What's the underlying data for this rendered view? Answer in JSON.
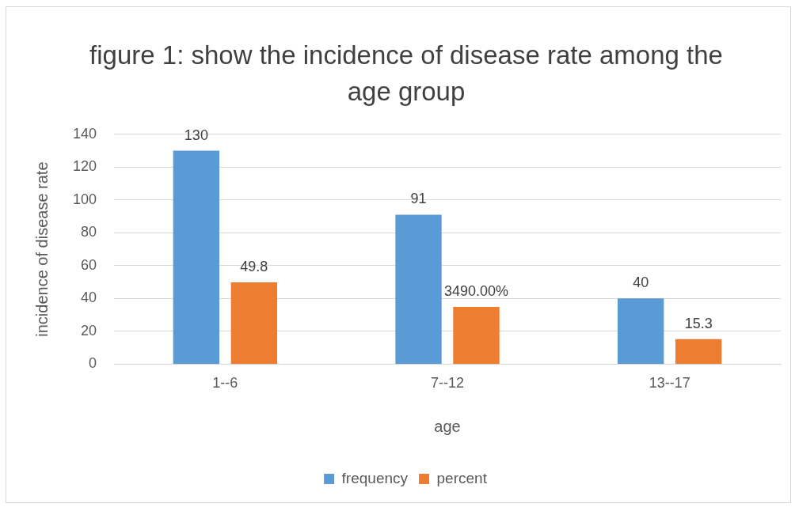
{
  "chart_data": {
    "type": "bar",
    "title": "figure 1: show the incidence of disease rate among the age group",
    "xlabel": "age",
    "ylabel": "incidence of disease rate",
    "categories": [
      "1--6",
      "7--12",
      "13--17"
    ],
    "series": [
      {
        "name": "frequency",
        "color": "#5b9bd5",
        "values": [
          130,
          91,
          40
        ],
        "value_labels": [
          "130",
          "91",
          "40"
        ]
      },
      {
        "name": "percent",
        "color": "#ed7d31",
        "values": [
          49.8,
          34.9,
          15.3
        ],
        "value_labels": [
          "49.8",
          "3490.00%",
          "15.3"
        ]
      }
    ],
    "ylim": [
      0,
      140
    ],
    "yticks": [
      0,
      20,
      40,
      60,
      80,
      100,
      120,
      140
    ],
    "grid": "y",
    "legend": "bottom"
  }
}
